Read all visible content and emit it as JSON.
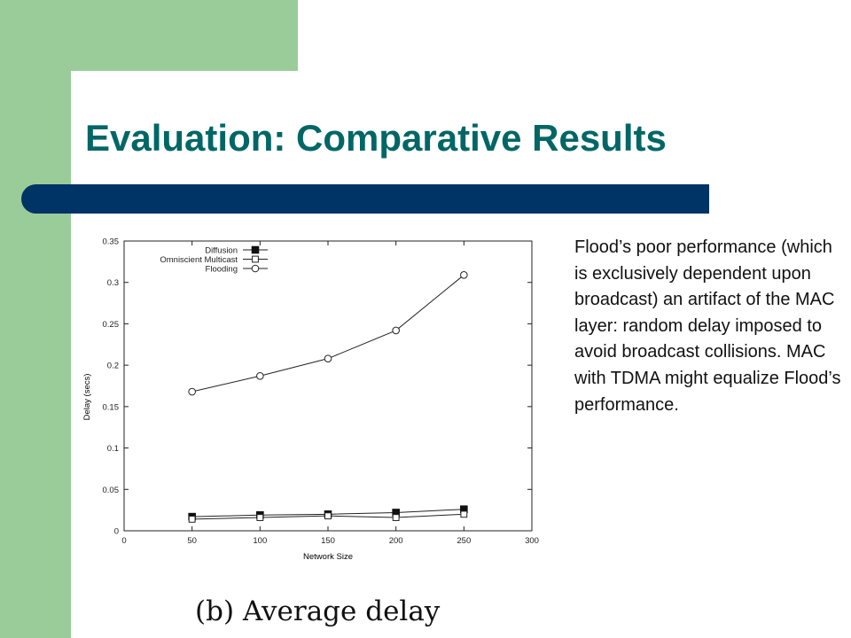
{
  "slide": {
    "title": "Evaluation: Comparative Results",
    "body_text": "Flood’s poor performance (which is exclusively dependent upon broadcast) an artifact of the MAC layer: random delay imposed to avoid broadcast collisions. MAC with TDMA might equalize Flood’s performance.",
    "caption": "(b) Average delay"
  },
  "colors": {
    "green": "#99cc99",
    "title_text": "#006666",
    "title_bar": "#003366",
    "plot_ink": "#222222"
  },
  "chart_data": {
    "type": "line",
    "xlabel": "Network Size",
    "ylabel": "Delay (secs)",
    "xlim": [
      0,
      300
    ],
    "ylim": [
      0,
      0.35
    ],
    "xticks": [
      "0",
      "50",
      "100",
      "150",
      "200",
      "250",
      "300"
    ],
    "yticks": [
      "0",
      "0.05",
      "0.1",
      "0.15",
      "0.2",
      "0.25",
      "0.3",
      "0.35"
    ],
    "x": [
      50,
      100,
      150,
      200,
      250
    ],
    "legend_position": "top-left",
    "grid": false,
    "series": [
      {
        "name": "Diffusion",
        "marker": "filled-square",
        "values": [
          0.017,
          0.019,
          0.02,
          0.022,
          0.026
        ]
      },
      {
        "name": "Omniscient Multicast",
        "marker": "open-square",
        "values": [
          0.014,
          0.016,
          0.018,
          0.016,
          0.02
        ]
      },
      {
        "name": "Flooding",
        "marker": "open-circle",
        "values": [
          0.168,
          0.187,
          0.208,
          0.242,
          0.309
        ]
      }
    ]
  }
}
